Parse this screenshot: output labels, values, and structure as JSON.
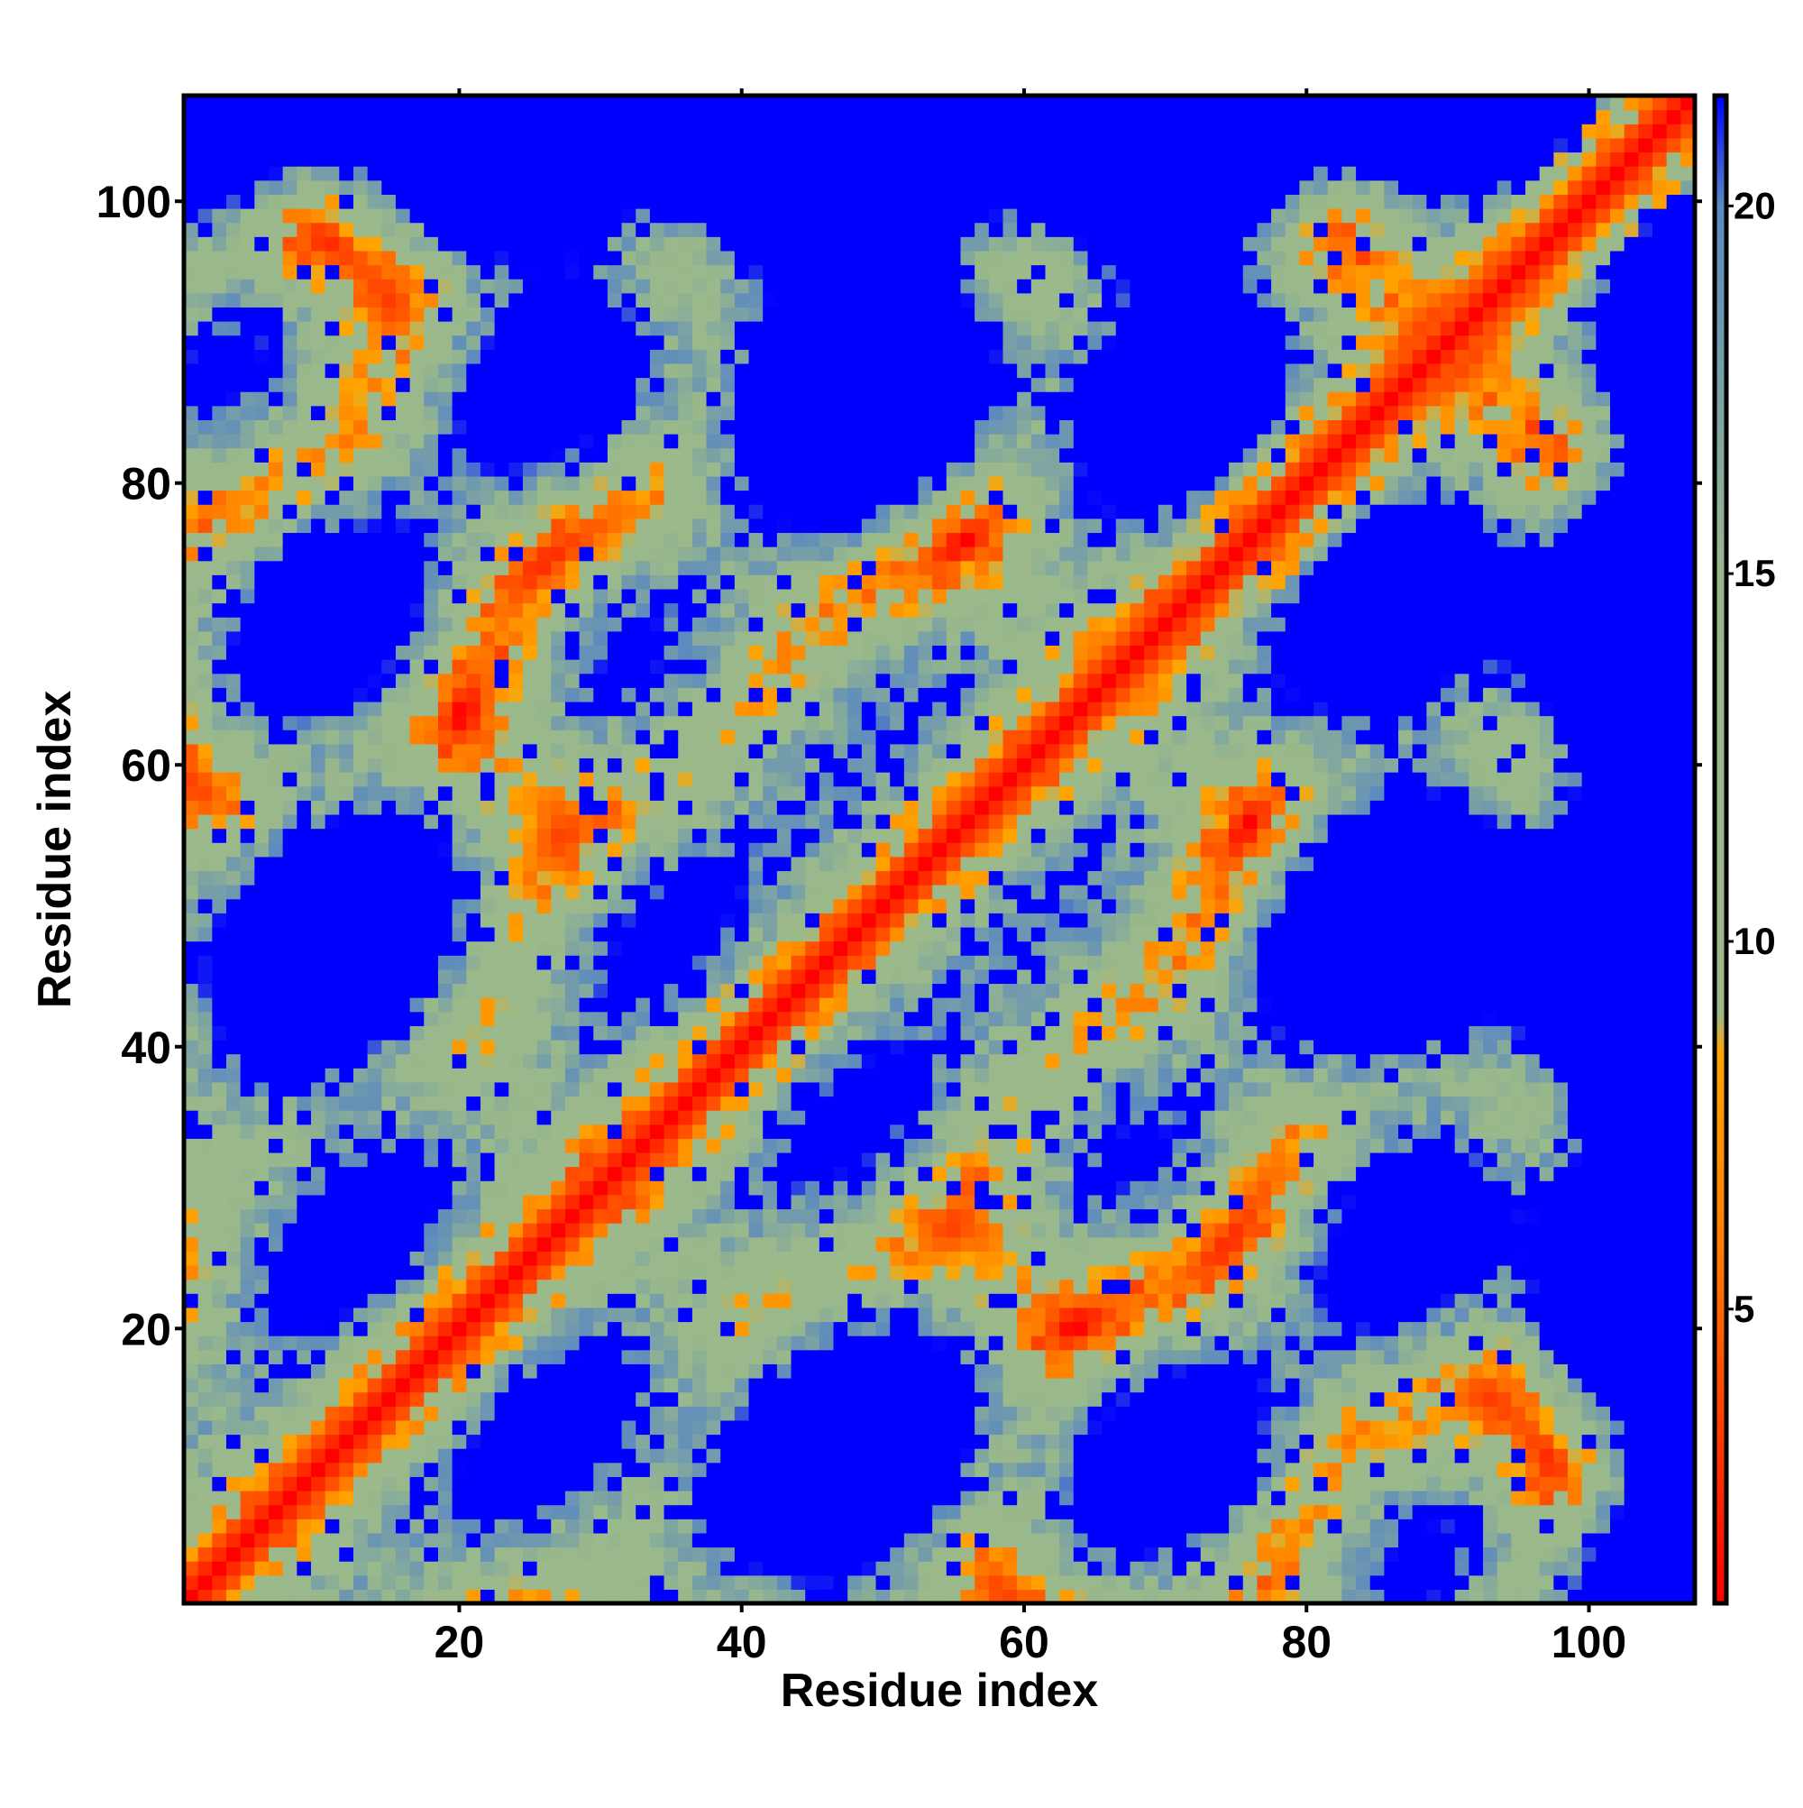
{
  "chart_data": {
    "type": "heatmap",
    "title": "",
    "xlabel": "Residue index",
    "ylabel": "Residue index",
    "xlim": [
      1,
      107
    ],
    "ylim": [
      1,
      107
    ],
    "x_ticks": [
      20,
      40,
      60,
      80,
      100
    ],
    "y_ticks": [
      20,
      40,
      60,
      80,
      100
    ],
    "colorbar": {
      "range": [
        1,
        21.5
      ],
      "ticks": [
        5,
        10,
        15,
        20
      ],
      "stops": [
        {
          "value": 1,
          "color": "#ff0000"
        },
        {
          "value": 6,
          "color": "#ff7f00"
        },
        {
          "value": 8.5,
          "color": "#ffa500"
        },
        {
          "value": 9,
          "color": "#9cb98a"
        },
        {
          "value": 15,
          "color": "#98b88c"
        },
        {
          "value": 20,
          "color": "#5b89c0"
        },
        {
          "value": 21.5,
          "color": "#0000ff"
        }
      ]
    },
    "matrix_size": 107,
    "description_of_values": "symmetric residue-residue distance map; near-diagonal values approx 1-5 (red), regular off-diagonal contact bands approx 6-19, remaining cells saturated at 21.5 (blue)",
    "color_scale_note": "low=red, mid=orange/sage, high=blue"
  }
}
